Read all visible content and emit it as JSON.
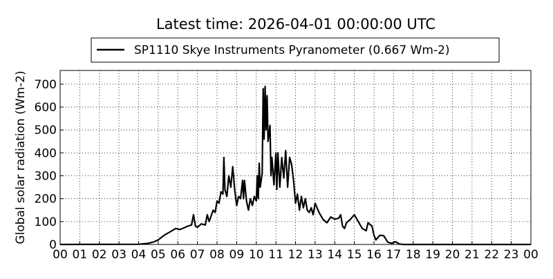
{
  "chart_data": {
    "type": "line",
    "title": "Latest time: 2026-04-01 00:00:00 UTC",
    "y_label": "Global solar radiation (Wm-2)",
    "grid": true,
    "legend": "top",
    "xlim": [
      0,
      24
    ],
    "ylim": [
      0,
      760
    ],
    "xticks": [
      {
        "value": 0,
        "label": "00"
      },
      {
        "value": 1,
        "label": "01"
      },
      {
        "value": 2,
        "label": "02"
      },
      {
        "value": 3,
        "label": "03"
      },
      {
        "value": 4,
        "label": "04"
      },
      {
        "value": 5,
        "label": "05"
      },
      {
        "value": 6,
        "label": "06"
      },
      {
        "value": 7,
        "label": "07"
      },
      {
        "value": 8,
        "label": "08"
      },
      {
        "value": 9,
        "label": "09"
      },
      {
        "value": 10,
        "label": "10"
      },
      {
        "value": 11,
        "label": "11"
      },
      {
        "value": 12,
        "label": "12"
      },
      {
        "value": 13,
        "label": "13"
      },
      {
        "value": 14,
        "label": "14"
      },
      {
        "value": 15,
        "label": "15"
      },
      {
        "value": 16,
        "label": "16"
      },
      {
        "value": 17,
        "label": "17"
      },
      {
        "value": 18,
        "label": "18"
      },
      {
        "value": 19,
        "label": "19"
      },
      {
        "value": 20,
        "label": "20"
      },
      {
        "value": 21,
        "label": "21"
      },
      {
        "value": 22,
        "label": "22"
      },
      {
        "value": 23,
        "label": "23"
      },
      {
        "value": 24,
        "label": "00"
      }
    ],
    "yticks": [
      0,
      100,
      200,
      300,
      400,
      500,
      600,
      700
    ],
    "x": [
      0,
      4,
      4.5,
      4.8,
      5,
      5.3,
      5.6,
      5.9,
      6.1,
      6.3,
      6.5,
      6.7,
      6.8,
      6.9,
      7,
      7.2,
      7.4,
      7.5,
      7.6,
      7.8,
      7.9,
      8,
      8.1,
      8.2,
      8.3,
      8.35,
      8.4,
      8.5,
      8.6,
      8.7,
      8.8,
      8.9,
      9,
      9.1,
      9.2,
      9.3,
      9.35,
      9.4,
      9.5,
      9.6,
      9.7,
      9.8,
      9.9,
      10,
      10.05,
      10.1,
      10.15,
      10.2,
      10.3,
      10.35,
      10.4,
      10.45,
      10.5,
      10.55,
      10.6,
      10.7,
      10.75,
      10.8,
      10.9,
      11,
      11.05,
      11.1,
      11.2,
      11.3,
      11.4,
      11.5,
      11.6,
      11.7,
      11.8,
      11.9,
      12,
      12.1,
      12.2,
      12.3,
      12.4,
      12.5,
      12.6,
      12.7,
      12.8,
      12.9,
      13,
      13.2,
      13.4,
      13.6,
      13.8,
      14,
      14.2,
      14.3,
      14.4,
      14.5,
      14.6,
      14.8,
      15,
      15.2,
      15.4,
      15.6,
      15.7,
      15.9,
      16,
      16.1,
      16.3,
      16.5,
      16.7,
      16.9,
      17.1,
      17.3,
      17.5,
      24
    ],
    "series": [
      {
        "name": "SP1110 Skye Instruments Pyranometer (0.667 Wm-2)",
        "color": "#000000",
        "values": [
          0,
          1,
          5,
          12,
          20,
          40,
          55,
          70,
          65,
          72,
          80,
          85,
          130,
          80,
          75,
          90,
          85,
          130,
          100,
          150,
          140,
          190,
          180,
          230,
          220,
          380,
          240,
          210,
          300,
          250,
          340,
          240,
          170,
          210,
          200,
          280,
          200,
          280,
          190,
          150,
          200,
          170,
          210,
          190,
          300,
          200,
          355,
          250,
          310,
          680,
          460,
          690,
          500,
          650,
          450,
          520,
          300,
          380,
          260,
          400,
          240,
          400,
          250,
          380,
          290,
          410,
          250,
          380,
          350,
          280,
          180,
          220,
          150,
          210,
          160,
          200,
          150,
          140,
          160,
          130,
          180,
          140,
          110,
          95,
          120,
          110,
          115,
          130,
          80,
          70,
          95,
          110,
          130,
          100,
          70,
          60,
          95,
          80,
          40,
          20,
          40,
          38,
          10,
          5,
          12,
          2,
          0,
          0
        ]
      }
    ]
  }
}
